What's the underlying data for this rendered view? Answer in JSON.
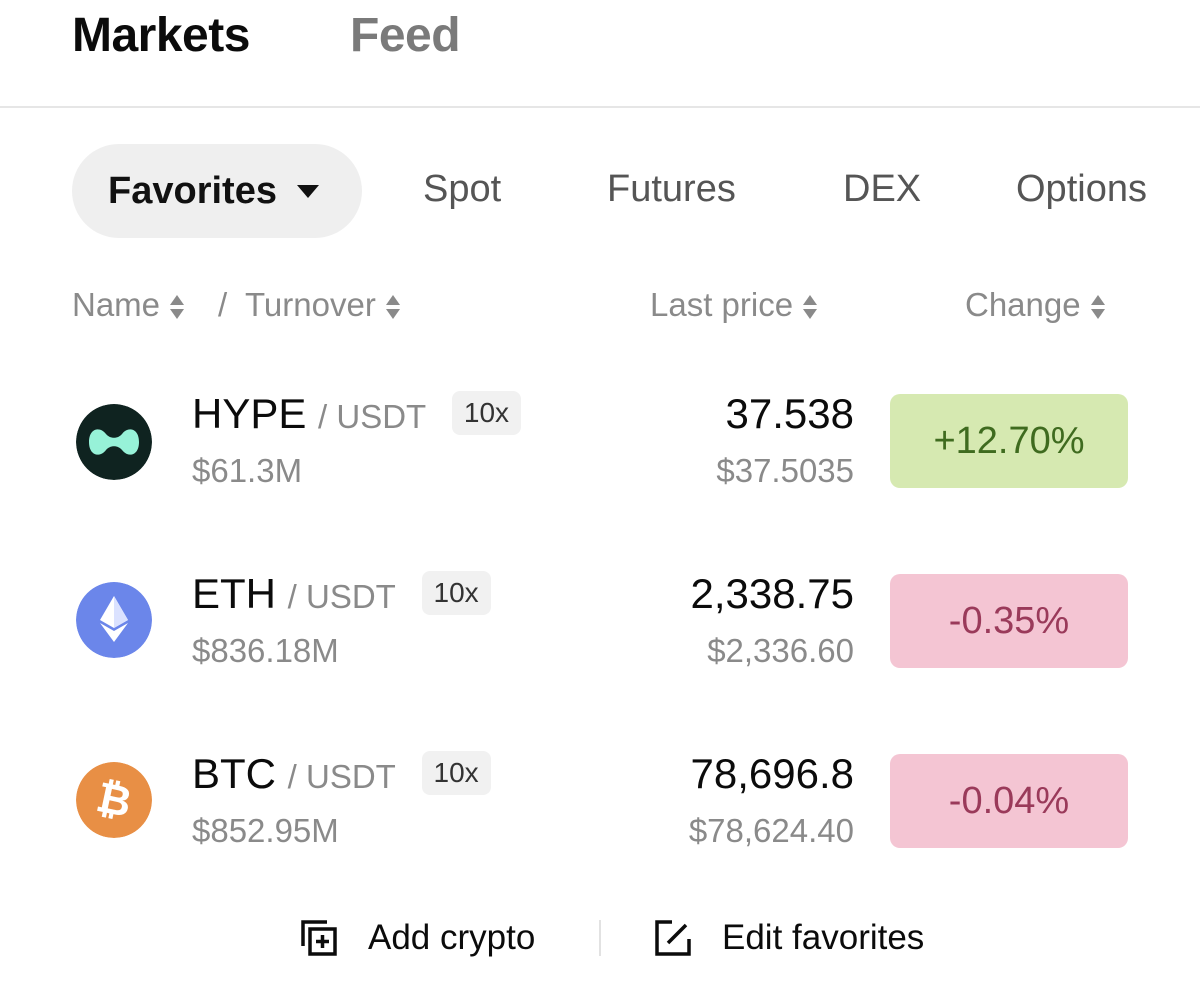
{
  "top_tabs": [
    {
      "label": "Markets",
      "active": true
    },
    {
      "label": "Feed",
      "active": false
    }
  ],
  "categories": {
    "selected": "Favorites",
    "others": [
      "Spot",
      "Futures",
      "DEX",
      "Options"
    ]
  },
  "columns": {
    "name": "Name",
    "separator": "/",
    "turnover": "Turnover",
    "last_price": "Last price",
    "change": "Change"
  },
  "rows": [
    {
      "symbol": "HYPE",
      "quote": "/ USDT",
      "leverage": "10x",
      "turnover": "$61.3M",
      "price": "37.538",
      "fiat_price": "$37.5035",
      "change": "+12.70%",
      "direction": "up",
      "icon": "hype-icon"
    },
    {
      "symbol": "ETH",
      "quote": "/ USDT",
      "leverage": "10x",
      "turnover": "$836.18M",
      "price": "2,338.75",
      "fiat_price": "$2,336.60",
      "change": "-0.35%",
      "direction": "down",
      "icon": "eth-icon"
    },
    {
      "symbol": "BTC",
      "quote": "/ USDT",
      "leverage": "10x",
      "turnover": "$852.95M",
      "price": "78,696.8",
      "fiat_price": "$78,624.40",
      "change": "-0.04%",
      "direction": "down",
      "icon": "btc-icon"
    }
  ],
  "actions": {
    "add": "Add crypto",
    "edit": "Edit favorites"
  },
  "colors": {
    "up_bg": "#d6e9b1",
    "up_text": "#3f6b1f",
    "down_bg": "#f4c5d3",
    "down_text": "#9a3a5a",
    "hype_brand": "#0f2320",
    "hype_accent": "#97f2d8",
    "eth_brand": "#6b86ea",
    "btc_brand": "#e88f45"
  }
}
